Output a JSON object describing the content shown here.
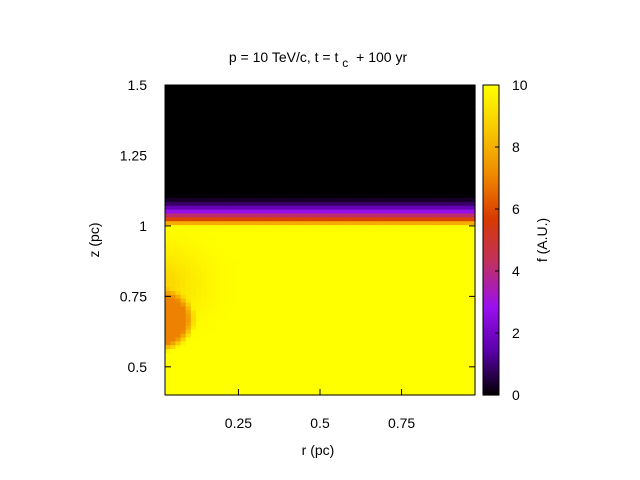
{
  "chart_data": {
    "type": "heatmap",
    "title": {
      "main": "p = 10 TeV/c, t = t",
      "subscript": "c",
      "suffix": "+ 100 yr"
    },
    "xlabel": "r (pc)",
    "ylabel": "z (pc)",
    "colorbar_label": "f (A.U.)",
    "xlim": [
      0,
      1
    ],
    "ylim": [
      0.4,
      1.5
    ],
    "zlim": [
      0,
      10
    ],
    "x_ticks": [
      {
        "value": 0.25,
        "label": "0.25"
      },
      {
        "value": 0.5,
        "label": "0.5"
      },
      {
        "value": 0.75,
        "label": "0.75"
      }
    ],
    "y_ticks": [
      {
        "value": 0.5,
        "label": "0.5"
      },
      {
        "value": 0.75,
        "label": "0.75"
      },
      {
        "value": 1.0,
        "label": "1"
      },
      {
        "value": 1.25,
        "label": "1.25"
      },
      {
        "value": 1.5,
        "label": "1.5"
      }
    ],
    "colorbar_ticks": [
      {
        "value": 0,
        "label": "0"
      },
      {
        "value": 2,
        "label": "2"
      },
      {
        "value": 4,
        "label": "4"
      },
      {
        "value": 6,
        "label": "6"
      },
      {
        "value": 8,
        "label": "8"
      },
      {
        "value": 10,
        "label": "10"
      }
    ],
    "palette": [
      "#000000",
      "#5a00a8",
      "#9a10f0",
      "#c03060",
      "#d83a00",
      "#ee8a00",
      "#f8c800",
      "#ffff00"
    ],
    "features": {
      "background_value": 10,
      "upper_region": {
        "z_min": 1.12,
        "value": 0
      },
      "front": {
        "z": 1.0,
        "width_pc": 0.12
      },
      "blob": {
        "r": 0.0,
        "z": 0.67,
        "radius_pc": 0.12,
        "value": 7.0
      },
      "halo": {
        "r": 0.0,
        "z": 0.8,
        "radius_pc": 0.28,
        "value": 8.6
      }
    },
    "grid": false,
    "legend": "none"
  }
}
